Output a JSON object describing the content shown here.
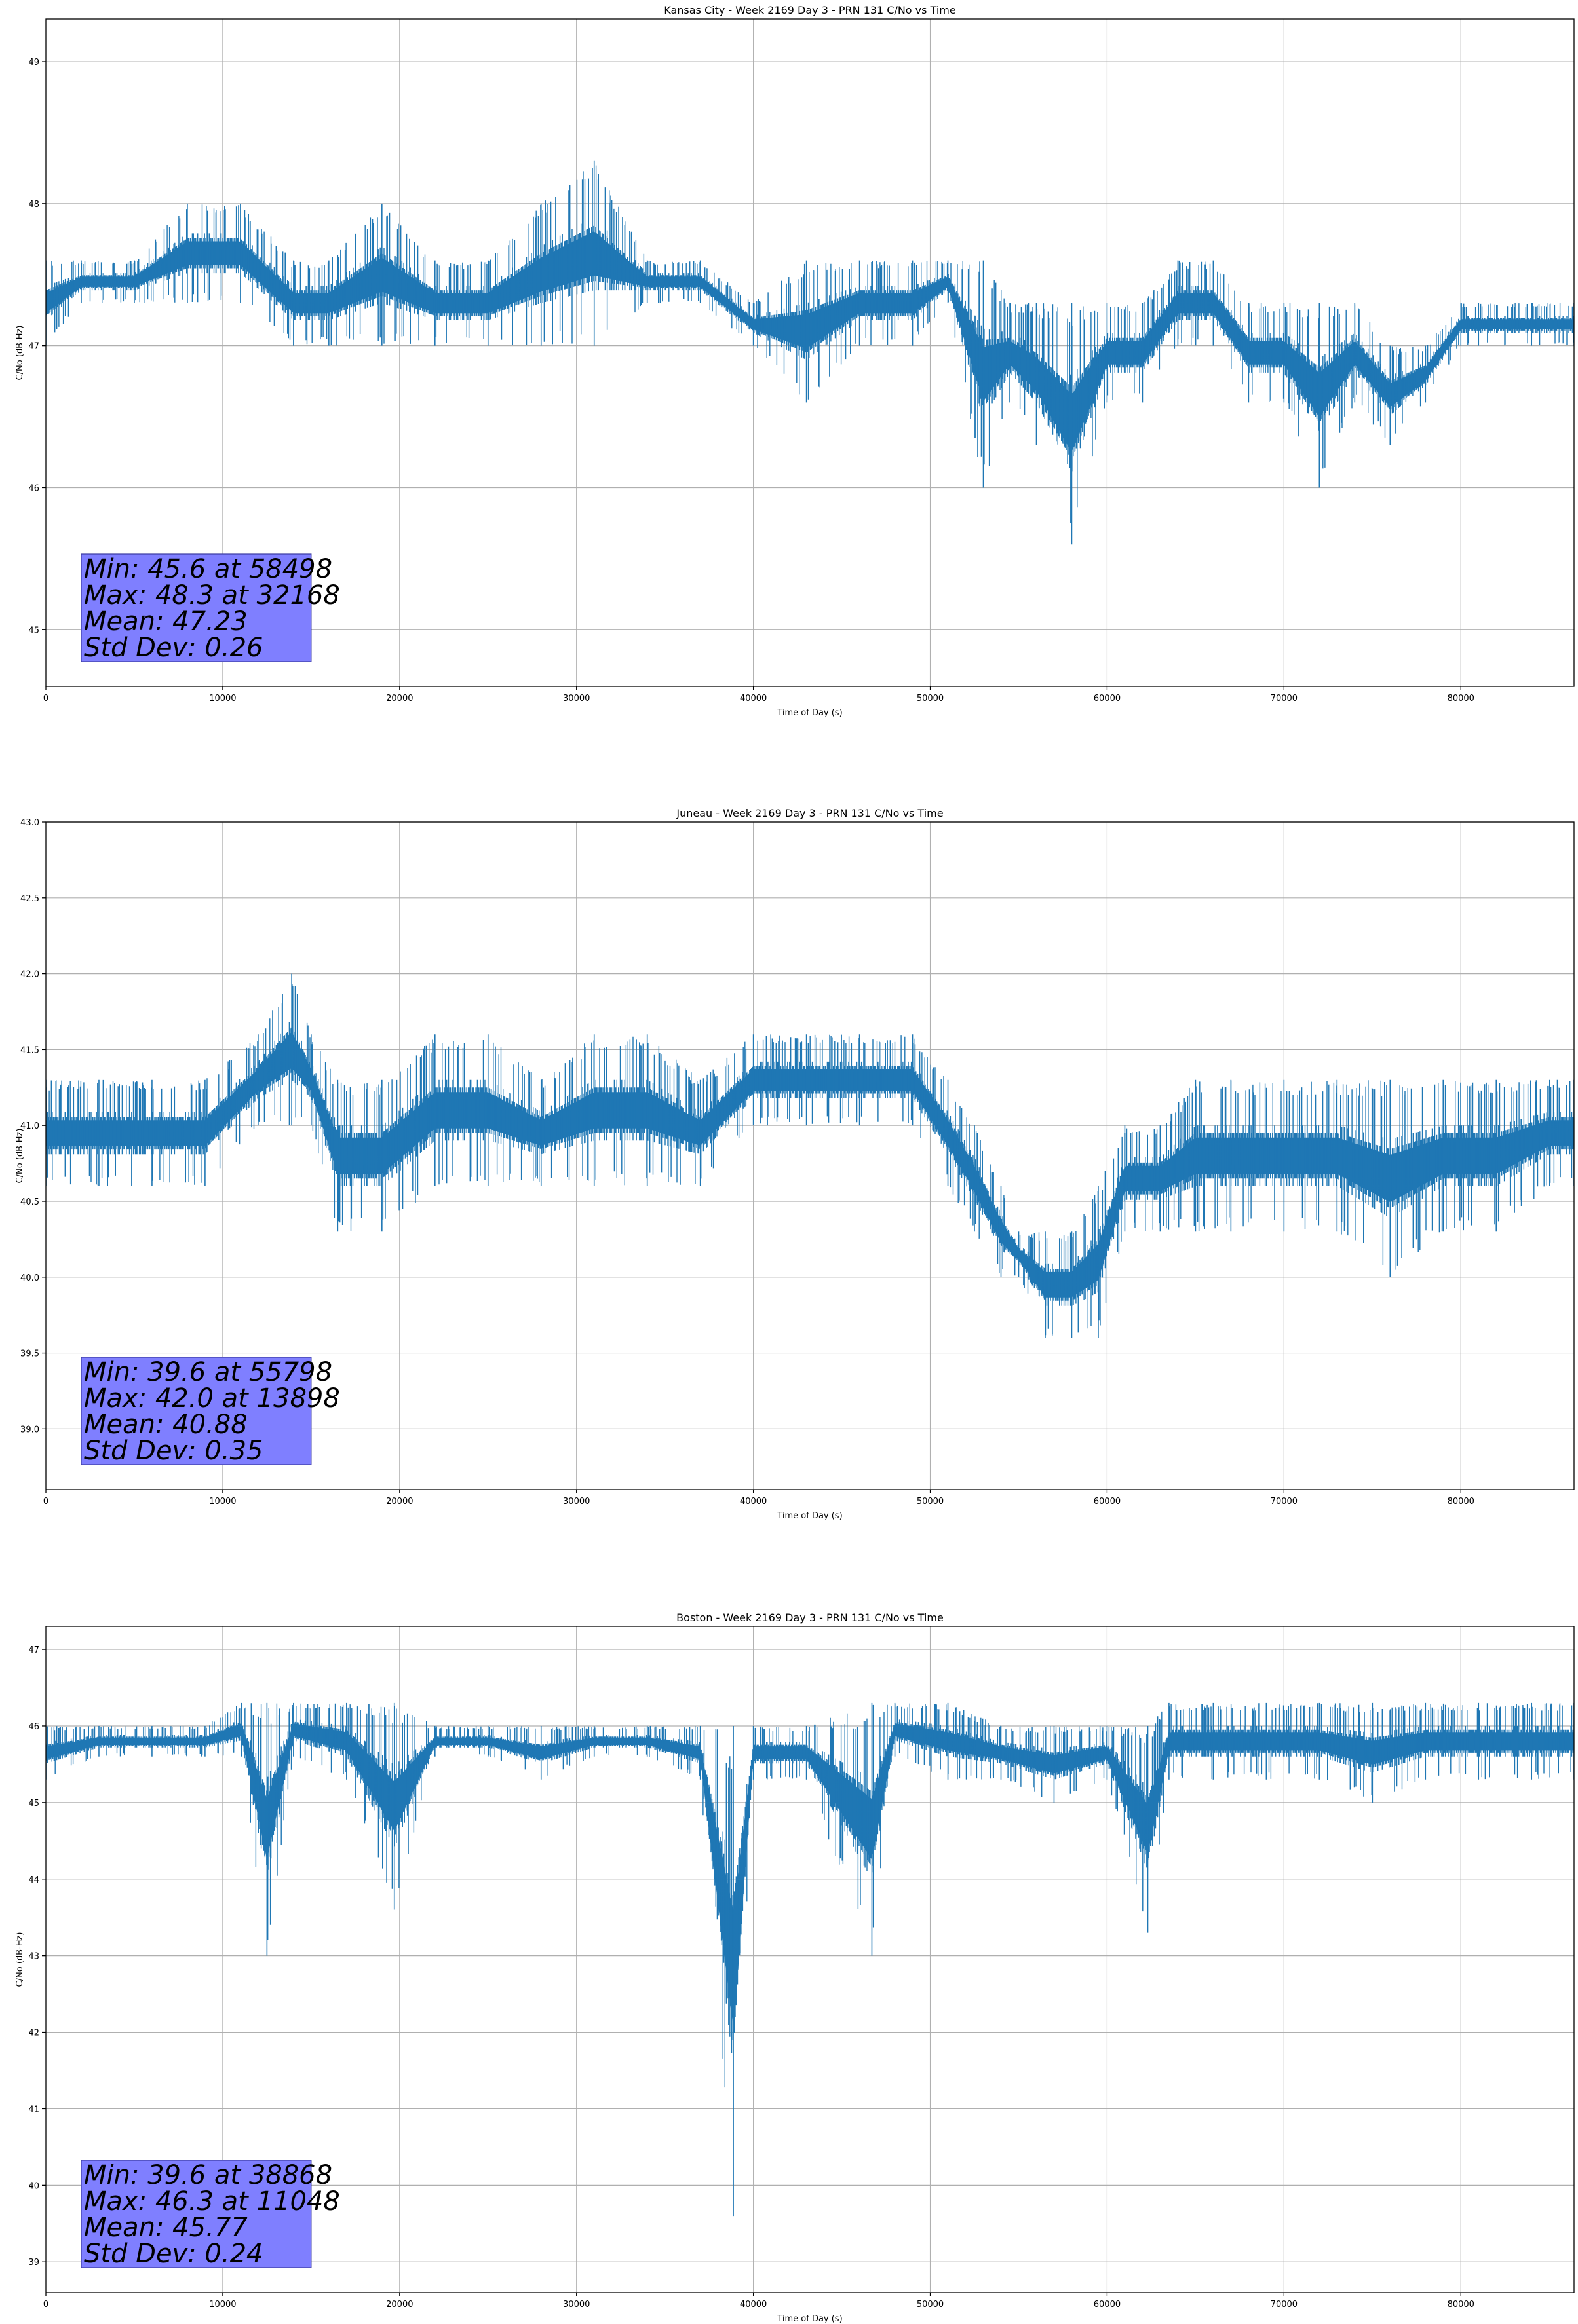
{
  "colors": {
    "series": "#1f77b4",
    "grid": "#b0b0b0",
    "stats_box": "#7f7fff",
    "stats_box_edge": "#3a3aa0"
  },
  "chart_data": [
    {
      "type": "line",
      "title": "Kansas City - Week 2169 Day 3 - PRN 131 C/No vs Time",
      "xlabel": "Time of Day (s)",
      "ylabel": "C/No (dB-Hz)",
      "xlim": [
        0,
        86400
      ],
      "ylim": [
        44.6,
        49.3
      ],
      "xticks": [
        0,
        10000,
        20000,
        30000,
        40000,
        50000,
        60000,
        70000,
        80000
      ],
      "yticks": [
        45,
        46,
        47,
        48,
        49
      ],
      "grid": true,
      "stats": [
        "Min: 45.6 at 58498",
        "Max: 48.3 at 32168",
        "Mean: 47.23",
        "Std Dev: 0.26"
      ],
      "series": [
        {
          "x": [
            0,
            2000,
            5000,
            8000,
            11000,
            14000,
            16000,
            19000,
            22000,
            25000,
            28000,
            31000,
            34000,
            37000,
            40000,
            43000,
            46000,
            49000,
            51000,
            53000,
            54500,
            56000,
            58000,
            60000,
            62000,
            64000,
            66000,
            68000,
            70000,
            72000,
            74000,
            76000,
            78000,
            80000,
            81000,
            84000,
            86400
          ],
          "hi": [
            47.6,
            47.6,
            47.6,
            48.0,
            48.0,
            47.6,
            47.6,
            48.0,
            47.6,
            47.6,
            48.0,
            48.3,
            47.6,
            47.6,
            47.3,
            47.6,
            47.6,
            47.6,
            47.6,
            47.6,
            47.3,
            47.3,
            47.3,
            47.3,
            47.3,
            47.6,
            47.6,
            47.3,
            47.3,
            47.3,
            47.3,
            47.0,
            47.0,
            47.3,
            47.3,
            47.3,
            47.3
          ],
          "lo": [
            47.0,
            47.3,
            47.3,
            47.3,
            47.3,
            47.0,
            47.0,
            47.0,
            47.0,
            47.0,
            47.0,
            47.0,
            47.3,
            47.3,
            47.0,
            46.6,
            47.0,
            47.0,
            47.3,
            46.0,
            46.6,
            46.3,
            45.6,
            46.6,
            46.6,
            47.0,
            47.0,
            46.6,
            46.6,
            46.0,
            46.6,
            46.3,
            46.6,
            47.0,
            47.0,
            47.0,
            47.0
          ]
        }
      ]
    },
    {
      "type": "line",
      "title": "Juneau - Week 2169 Day 3 - PRN 131 C/No vs Time",
      "xlabel": "Time of Day (s)",
      "ylabel": "C/No (dB-Hz)",
      "xlim": [
        0,
        86400
      ],
      "ylim": [
        38.6,
        43.0
      ],
      "xticks": [
        0,
        10000,
        20000,
        30000,
        40000,
        50000,
        60000,
        70000,
        80000
      ],
      "yticks": [
        39.0,
        39.5,
        40.0,
        40.5,
        41.0,
        41.5,
        42.0,
        42.5,
        43.0
      ],
      "grid": true,
      "stats": [
        "Min: 39.6 at 55798",
        "Max: 42.0 at 13898",
        "Mean: 40.88",
        "Std Dev: 0.35"
      ],
      "series": [
        {
          "x": [
            0,
            3000,
            6000,
            9000,
            12000,
            13898,
            15000,
            16500,
            19000,
            22000,
            25000,
            28000,
            31000,
            34000,
            37000,
            40000,
            43000,
            46000,
            49000,
            51000,
            52500,
            54000,
            55000,
            56500,
            58000,
            59500,
            61000,
            63000,
            65000,
            67000,
            70000,
            73000,
            76000,
            79000,
            82000,
            85000,
            86400
          ],
          "hi": [
            41.3,
            41.3,
            41.3,
            41.3,
            41.6,
            42.0,
            41.6,
            41.3,
            41.3,
            41.6,
            41.6,
            41.3,
            41.6,
            41.6,
            41.3,
            41.6,
            41.6,
            41.6,
            41.6,
            41.3,
            41.0,
            40.6,
            40.3,
            40.3,
            40.3,
            40.6,
            41.0,
            41.0,
            41.3,
            41.3,
            41.3,
            41.3,
            41.3,
            41.3,
            41.3,
            41.3,
            41.3
          ],
          "lo": [
            40.6,
            40.6,
            40.6,
            40.6,
            41.0,
            41.0,
            41.0,
            40.3,
            40.3,
            40.6,
            40.6,
            40.6,
            40.6,
            40.6,
            40.6,
            41.0,
            41.0,
            41.0,
            41.0,
            40.6,
            40.3,
            40.0,
            40.0,
            39.6,
            39.6,
            39.6,
            40.3,
            40.3,
            40.3,
            40.3,
            40.3,
            40.3,
            40.0,
            40.3,
            40.3,
            40.6,
            40.6
          ]
        }
      ]
    },
    {
      "type": "line",
      "title": "Boston - Week 2169 Day 3 - PRN 131 C/No vs Time",
      "xlabel": "Time of Day (s)",
      "ylabel": "C/No (dB-Hz)",
      "xlim": [
        0,
        86400
      ],
      "ylim": [
        38.6,
        47.3
      ],
      "xticks": [
        0,
        10000,
        20000,
        30000,
        40000,
        50000,
        60000,
        70000,
        80000
      ],
      "yticks": [
        39,
        40,
        41,
        42,
        43,
        44,
        45,
        46,
        47
      ],
      "grid": true,
      "stats": [
        "Min: 39.6 at 38868",
        "Max: 46.3 at 11048",
        "Mean: 45.77",
        "Std Dev: 0.24"
      ],
      "series": [
        {
          "x": [
            0,
            3000,
            6000,
            9000,
            11048,
            12500,
            14000,
            17000,
            19700,
            22000,
            25000,
            28000,
            31000,
            34000,
            37000,
            38868,
            40000,
            43000,
            46700,
            48000,
            51000,
            54000,
            57000,
            60000,
            62300,
            63500,
            66000,
            69000,
            72000,
            75000,
            78000,
            81000,
            84000,
            86400
          ],
          "hi": [
            46.0,
            46.0,
            46.0,
            46.0,
            46.3,
            46.3,
            46.3,
            46.3,
            46.3,
            46.0,
            46.0,
            46.0,
            46.0,
            46.0,
            46.0,
            46.0,
            46.0,
            46.0,
            46.3,
            46.3,
            46.3,
            46.0,
            46.0,
            46.0,
            46.0,
            46.3,
            46.3,
            46.3,
            46.3,
            46.3,
            46.3,
            46.3,
            46.3,
            46.3
          ],
          "lo": [
            45.3,
            45.6,
            45.6,
            45.6,
            45.6,
            43.0,
            45.6,
            45.3,
            43.6,
            45.6,
            45.6,
            45.3,
            45.6,
            45.6,
            45.3,
            39.6,
            45.3,
            45.3,
            43.0,
            45.6,
            45.3,
            45.3,
            45.0,
            45.3,
            43.3,
            45.3,
            45.3,
            45.3,
            45.3,
            45.0,
            45.3,
            45.3,
            45.3,
            45.3
          ]
        }
      ]
    }
  ]
}
